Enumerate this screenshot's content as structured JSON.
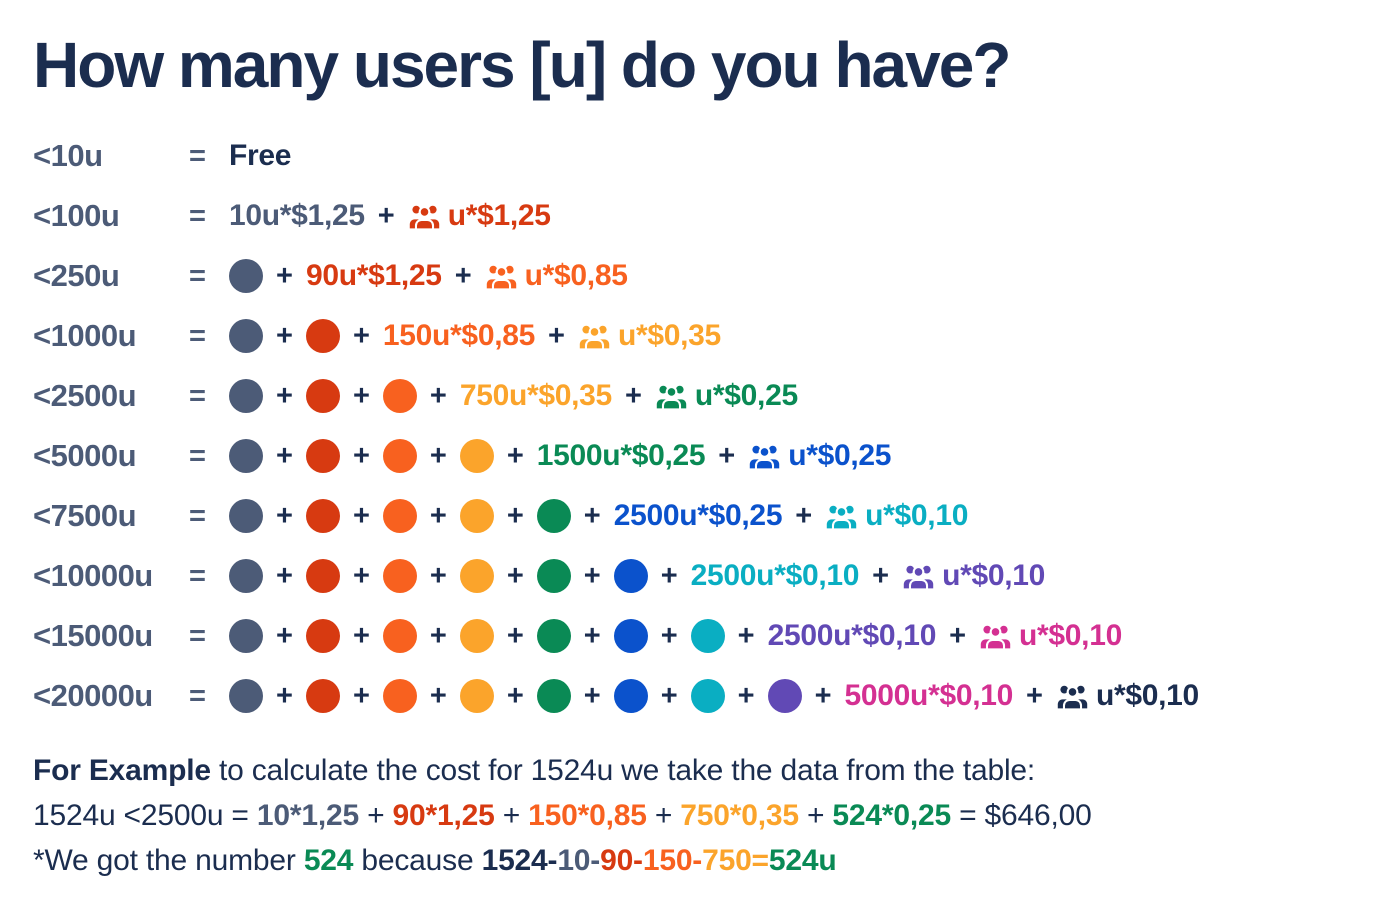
{
  "title": "How many users [u] do you have?",
  "colors": {
    "navy": "#1B2D4F",
    "slate": "#4C5B77",
    "red": "#D73A11",
    "orange": "#F8611F",
    "amber": "#FBA42B",
    "green": "#0A8A55",
    "blue": "#0B52CC",
    "teal": "#0AAEC2",
    "purple": "#6149B5",
    "magenta": "#D43092"
  },
  "table": {
    "equals": "=",
    "plus": "+",
    "rows": [
      {
        "label": "<10u",
        "tokens": [
          {
            "type": "term",
            "text": "Free",
            "color": "navy"
          }
        ]
      },
      {
        "label": "<100u",
        "tokens": [
          {
            "type": "term",
            "text": "10u*$1,25",
            "color": "slate"
          },
          {
            "type": "plus"
          },
          {
            "type": "users-term",
            "text": "u*$1,25",
            "color": "red"
          }
        ]
      },
      {
        "label": "<250u",
        "tokens": [
          {
            "type": "dot",
            "color": "slate"
          },
          {
            "type": "plus"
          },
          {
            "type": "term",
            "text": "90u*$1,25",
            "color": "red"
          },
          {
            "type": "plus"
          },
          {
            "type": "users-term",
            "text": "u*$0,85",
            "color": "orange"
          }
        ]
      },
      {
        "label": "<1000u",
        "tokens": [
          {
            "type": "dot",
            "color": "slate"
          },
          {
            "type": "plus"
          },
          {
            "type": "dot",
            "color": "red"
          },
          {
            "type": "plus"
          },
          {
            "type": "term",
            "text": "150u*$0,85",
            "color": "orange"
          },
          {
            "type": "plus"
          },
          {
            "type": "users-term",
            "text": "u*$0,35",
            "color": "amber"
          }
        ]
      },
      {
        "label": "<2500u",
        "tokens": [
          {
            "type": "dot",
            "color": "slate"
          },
          {
            "type": "plus"
          },
          {
            "type": "dot",
            "color": "red"
          },
          {
            "type": "plus"
          },
          {
            "type": "dot",
            "color": "orange"
          },
          {
            "type": "plus"
          },
          {
            "type": "term",
            "text": "750u*$0,35",
            "color": "amber"
          },
          {
            "type": "plus"
          },
          {
            "type": "users-term",
            "text": "u*$0,25",
            "color": "green"
          }
        ]
      },
      {
        "label": "<5000u",
        "tokens": [
          {
            "type": "dot",
            "color": "slate"
          },
          {
            "type": "plus"
          },
          {
            "type": "dot",
            "color": "red"
          },
          {
            "type": "plus"
          },
          {
            "type": "dot",
            "color": "orange"
          },
          {
            "type": "plus"
          },
          {
            "type": "dot",
            "color": "amber"
          },
          {
            "type": "plus"
          },
          {
            "type": "term",
            "text": "1500u*$0,25",
            "color": "green"
          },
          {
            "type": "plus"
          },
          {
            "type": "users-term",
            "text": "u*$0,25",
            "color": "blue"
          }
        ]
      },
      {
        "label": "<7500u",
        "tokens": [
          {
            "type": "dot",
            "color": "slate"
          },
          {
            "type": "plus"
          },
          {
            "type": "dot",
            "color": "red"
          },
          {
            "type": "plus"
          },
          {
            "type": "dot",
            "color": "orange"
          },
          {
            "type": "plus"
          },
          {
            "type": "dot",
            "color": "amber"
          },
          {
            "type": "plus"
          },
          {
            "type": "dot",
            "color": "green"
          },
          {
            "type": "plus"
          },
          {
            "type": "term",
            "text": "2500u*$0,25",
            "color": "blue"
          },
          {
            "type": "plus"
          },
          {
            "type": "users-term",
            "text": "u*$0,10",
            "color": "teal"
          }
        ]
      },
      {
        "label": "<10000u",
        "tokens": [
          {
            "type": "dot",
            "color": "slate"
          },
          {
            "type": "plus"
          },
          {
            "type": "dot",
            "color": "red"
          },
          {
            "type": "plus"
          },
          {
            "type": "dot",
            "color": "orange"
          },
          {
            "type": "plus"
          },
          {
            "type": "dot",
            "color": "amber"
          },
          {
            "type": "plus"
          },
          {
            "type": "dot",
            "color": "green"
          },
          {
            "type": "plus"
          },
          {
            "type": "dot",
            "color": "blue"
          },
          {
            "type": "plus"
          },
          {
            "type": "term",
            "text": "2500u*$0,10",
            "color": "teal"
          },
          {
            "type": "plus"
          },
          {
            "type": "users-term",
            "text": "u*$0,10",
            "color": "purple"
          }
        ]
      },
      {
        "label": "<15000u",
        "tokens": [
          {
            "type": "dot",
            "color": "slate"
          },
          {
            "type": "plus"
          },
          {
            "type": "dot",
            "color": "red"
          },
          {
            "type": "plus"
          },
          {
            "type": "dot",
            "color": "orange"
          },
          {
            "type": "plus"
          },
          {
            "type": "dot",
            "color": "amber"
          },
          {
            "type": "plus"
          },
          {
            "type": "dot",
            "color": "green"
          },
          {
            "type": "plus"
          },
          {
            "type": "dot",
            "color": "blue"
          },
          {
            "type": "plus"
          },
          {
            "type": "dot",
            "color": "teal"
          },
          {
            "type": "plus"
          },
          {
            "type": "term",
            "text": "2500u*$0,10",
            "color": "purple"
          },
          {
            "type": "plus"
          },
          {
            "type": "users-term",
            "text": "u*$0,10",
            "color": "magenta"
          }
        ]
      },
      {
        "label": "<20000u",
        "tokens": [
          {
            "type": "dot",
            "color": "slate"
          },
          {
            "type": "plus"
          },
          {
            "type": "dot",
            "color": "red"
          },
          {
            "type": "plus"
          },
          {
            "type": "dot",
            "color": "orange"
          },
          {
            "type": "plus"
          },
          {
            "type": "dot",
            "color": "amber"
          },
          {
            "type": "plus"
          },
          {
            "type": "dot",
            "color": "green"
          },
          {
            "type": "plus"
          },
          {
            "type": "dot",
            "color": "blue"
          },
          {
            "type": "plus"
          },
          {
            "type": "dot",
            "color": "teal"
          },
          {
            "type": "plus"
          },
          {
            "type": "dot",
            "color": "purple"
          },
          {
            "type": "plus"
          },
          {
            "type": "term",
            "text": "5000u*$0,10",
            "color": "magenta"
          },
          {
            "type": "plus"
          },
          {
            "type": "users-term",
            "text": "u*$0,10",
            "color": "navy"
          }
        ]
      }
    ]
  },
  "footer": {
    "lines": [
      [
        {
          "text": "For Example",
          "color": "navy",
          "bold": true
        },
        {
          "text": " to calculate the cost for 1524u we take the data from the table:",
          "color": "navy"
        }
      ],
      [
        {
          "text": "1524u <2500u = ",
          "color": "navy"
        },
        {
          "text": "10*1,25",
          "color": "slate",
          "bold": true
        },
        {
          "text": " + ",
          "color": "navy"
        },
        {
          "text": "90*1,25",
          "color": "red",
          "bold": true
        },
        {
          "text": " + ",
          "color": "navy"
        },
        {
          "text": "150*0,85",
          "color": "orange",
          "bold": true
        },
        {
          "text": " + ",
          "color": "navy"
        },
        {
          "text": "750*0,35",
          "color": "amber",
          "bold": true
        },
        {
          "text": " + ",
          "color": "navy"
        },
        {
          "text": "524*0,25",
          "color": "green",
          "bold": true
        },
        {
          "text": " = $646,00",
          "color": "navy"
        }
      ],
      [
        {
          "text": "*We got the number ",
          "color": "navy"
        },
        {
          "text": "524",
          "color": "green",
          "bold": true
        },
        {
          "text": " because ",
          "color": "navy"
        },
        {
          "text": "1524-",
          "color": "navy",
          "bold": true
        },
        {
          "text": "10-",
          "color": "slate",
          "bold": true
        },
        {
          "text": "90-",
          "color": "red",
          "bold": true
        },
        {
          "text": "150-",
          "color": "orange",
          "bold": true
        },
        {
          "text": "750=",
          "color": "amber",
          "bold": true
        },
        {
          "text": "524u",
          "color": "green",
          "bold": true
        }
      ]
    ]
  }
}
